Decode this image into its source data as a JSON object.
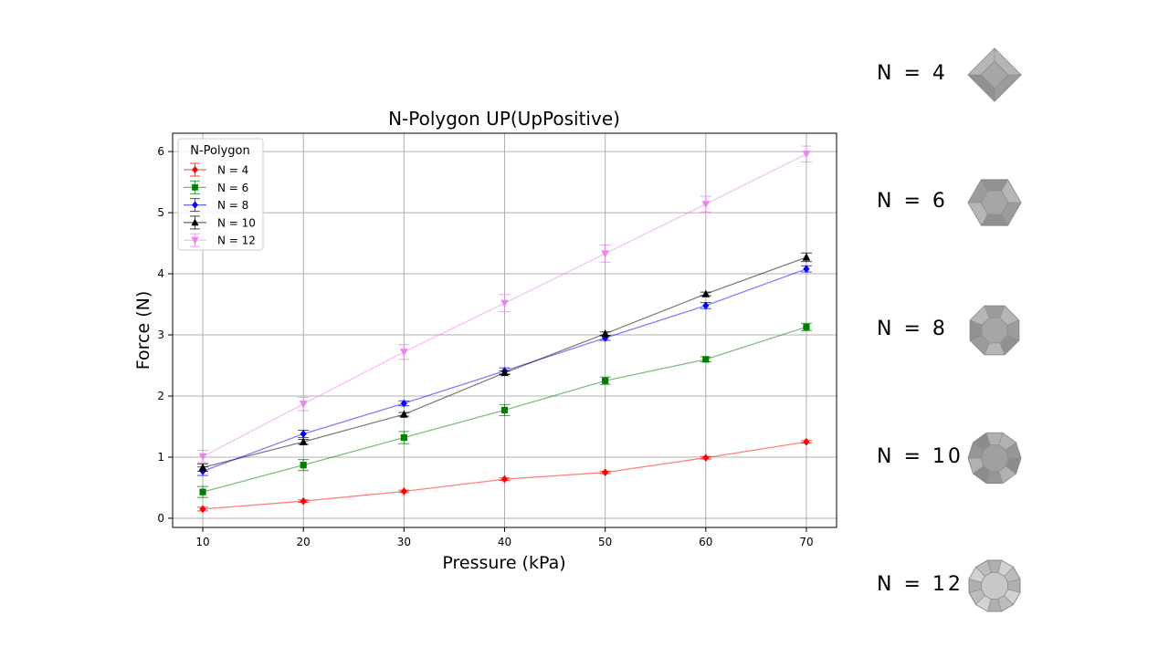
{
  "chart_data": {
    "type": "line",
    "title": "N-Polygon UP(UpPositive)",
    "xlabel": "Pressure (kPa)",
    "ylabel": "Force (N)",
    "x": [
      10,
      20,
      30,
      40,
      50,
      60,
      70
    ],
    "xlim": [
      7,
      73
    ],
    "ylim": [
      -0.15,
      6.3
    ],
    "xticks": [
      "10",
      "20",
      "30",
      "40",
      "50",
      "60",
      "70"
    ],
    "yticks": [
      "0",
      "1",
      "2",
      "3",
      "4",
      "5",
      "6"
    ],
    "grid": true,
    "legend": {
      "title": "N-Polygon",
      "placement": "upper-left"
    },
    "series": [
      {
        "name": "N = 4",
        "color": "#ff0000",
        "marker": "diamond",
        "values": [
          0.15,
          0.28,
          0.44,
          0.64,
          0.75,
          0.99,
          1.25
        ],
        "errors": [
          0.03,
          0.02,
          0.02,
          0.02,
          0.02,
          0.02,
          0.02
        ]
      },
      {
        "name": "N = 6",
        "color": "#008000",
        "marker": "square",
        "values": [
          0.43,
          0.87,
          1.32,
          1.77,
          2.25,
          2.6,
          3.13
        ],
        "errors": [
          0.09,
          0.09,
          0.1,
          0.09,
          0.06,
          0.04,
          0.06
        ]
      },
      {
        "name": "N = 8",
        "color": "#0000ff",
        "marker": "diamond",
        "values": [
          0.77,
          1.38,
          1.88,
          2.41,
          2.95,
          3.48,
          4.08
        ],
        "errors": [
          0.07,
          0.06,
          0.04,
          0.05,
          0.04,
          0.05,
          0.05
        ]
      },
      {
        "name": "N = 10",
        "color": "#000000",
        "marker": "triangle-up",
        "values": [
          0.83,
          1.25,
          1.7,
          2.38,
          3.02,
          3.67,
          4.27
        ],
        "errors": [
          0.06,
          0.04,
          0.03,
          0.03,
          0.03,
          0.03,
          0.07
        ]
      },
      {
        "name": "N = 12",
        "color": "#ee82ee",
        "marker": "triangle-down",
        "values": [
          1.01,
          1.87,
          2.72,
          3.52,
          4.33,
          5.14,
          5.96
        ],
        "errors": [
          0.1,
          0.11,
          0.12,
          0.14,
          0.14,
          0.13,
          0.13
        ]
      }
    ]
  },
  "side_panel": [
    {
      "label": "N = 4",
      "sides": 4,
      "fill": "#a6a6a6"
    },
    {
      "label": "N = 6",
      "sides": 6,
      "fill": "#a6a6a6"
    },
    {
      "label": "N = 8",
      "sides": 8,
      "fill": "#a6a6a6"
    },
    {
      "label": "N = 10",
      "sides": 10,
      "fill": "#a0a0a0"
    },
    {
      "label": "N = 12",
      "sides": 12,
      "fill": "#c8c8c8"
    }
  ]
}
